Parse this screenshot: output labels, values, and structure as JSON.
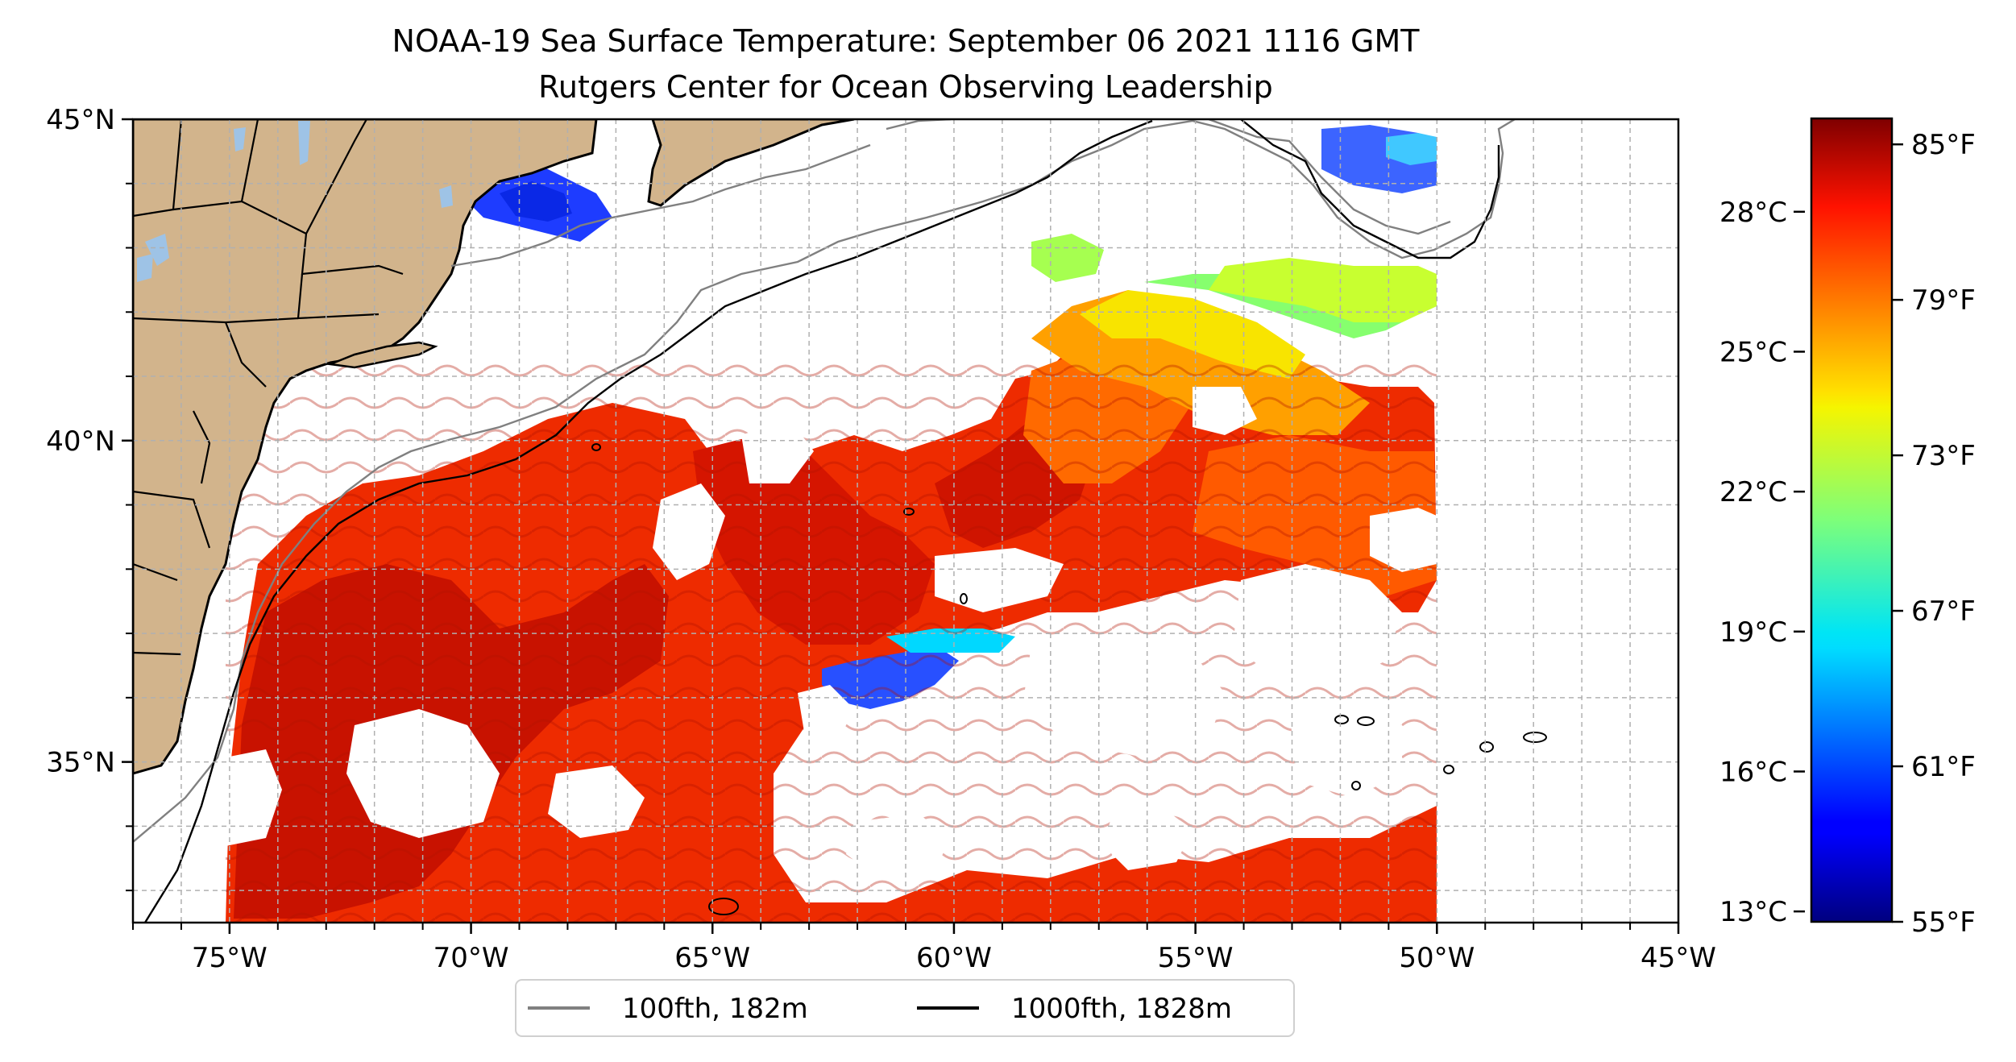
{
  "title": "NOAA-19 Sea Surface Temperature: September 06 2021 1116 GMT",
  "subtitle": "Rutgers Center for Ocean Observing Leadership",
  "map": {
    "lon_range": [
      -77,
      -45
    ],
    "lat_range": [
      32.5,
      45
    ],
    "x_ticks": [
      {
        "value": -75,
        "label": "75°W"
      },
      {
        "value": -70,
        "label": "70°W"
      },
      {
        "value": -65,
        "label": "65°W"
      },
      {
        "value": -60,
        "label": "60°W"
      },
      {
        "value": -55,
        "label": "55°W"
      },
      {
        "value": -50,
        "label": "50°W"
      },
      {
        "value": -45,
        "label": "45°W"
      }
    ],
    "y_ticks": [
      {
        "value": 45,
        "label": "45°N"
      },
      {
        "value": 40,
        "label": "40°N"
      },
      {
        "value": 35,
        "label": "35°N"
      }
    ],
    "gridlines": true,
    "land_color": "#d2b48c",
    "lake_color": "#9ec3e6",
    "sst_data_east_limit_lon": -50
  },
  "colorbar": {
    "colormap": "jet",
    "f_range": [
      55,
      86
    ],
    "fahrenheit_ticks": [
      {
        "value": 85,
        "label": "85°F"
      },
      {
        "value": 79,
        "label": "79°F"
      },
      {
        "value": 73,
        "label": "73°F"
      },
      {
        "value": 67,
        "label": "67°F"
      },
      {
        "value": 61,
        "label": "61°F"
      },
      {
        "value": 55,
        "label": "55°F"
      }
    ],
    "celsius_ticks": [
      {
        "value": 28,
        "label": "28°C"
      },
      {
        "value": 25,
        "label": "25°C"
      },
      {
        "value": 22,
        "label": "22°C"
      },
      {
        "value": 19,
        "label": "19°C"
      },
      {
        "value": 16,
        "label": "16°C"
      },
      {
        "value": 13,
        "label": "13°C"
      }
    ]
  },
  "legend": {
    "placement": "bottom-center",
    "items": [
      {
        "label": "100fth, 182m",
        "color": "#808080"
      },
      {
        "label": "1000fth, 1828m",
        "color": "#000000"
      }
    ]
  }
}
